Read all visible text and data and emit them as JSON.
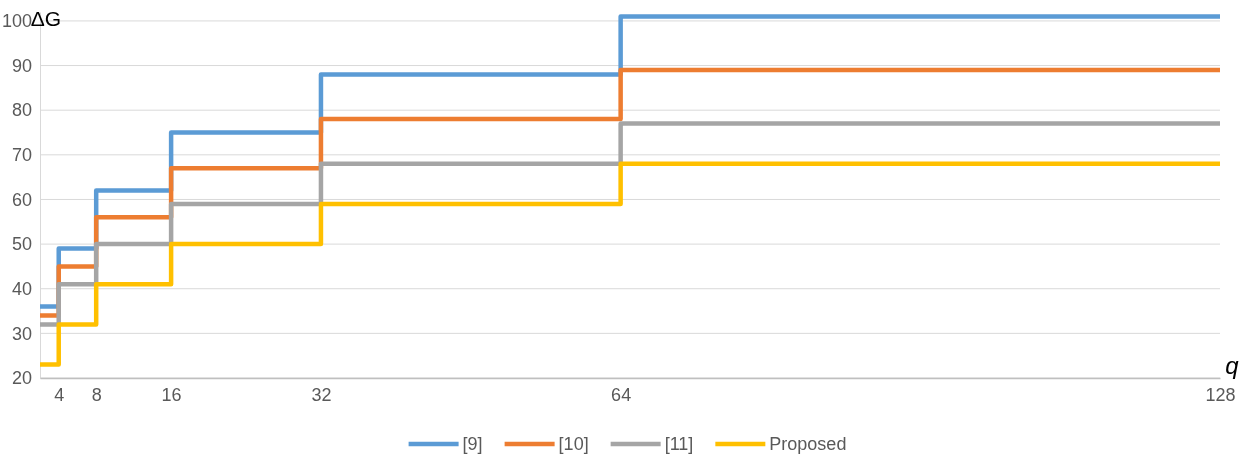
{
  "chart_data": {
    "type": "step",
    "xlabel": "q",
    "ylabel": "ΔG",
    "x": [
      2,
      4,
      8,
      16,
      32,
      64,
      128
    ],
    "series": [
      {
        "name": "[9]",
        "color": "#5b9bd5",
        "values": [
          36,
          49,
          62,
          75,
          88,
          101,
          101
        ]
      },
      {
        "name": "[10]",
        "color": "#ed7d31",
        "values": [
          34,
          45,
          56,
          67,
          78,
          89,
          89
        ]
      },
      {
        "name": "[11]",
        "color": "#a5a5a5",
        "values": [
          32,
          41,
          50,
          59,
          68,
          77,
          77
        ]
      },
      {
        "name": "Proposed",
        "color": "#ffc000",
        "values": [
          23,
          32,
          41,
          50,
          59,
          68,
          68
        ]
      }
    ],
    "xlim": [
      2,
      128
    ],
    "xticks": [
      4,
      8,
      16,
      32,
      64,
      128
    ],
    "ylim": [
      20,
      102
    ],
    "yticks": [
      20,
      30,
      40,
      50,
      60,
      70,
      80,
      90,
      100
    ],
    "grid": "y",
    "legend": "bottom",
    "line_style": "solid",
    "marker": "none"
  }
}
